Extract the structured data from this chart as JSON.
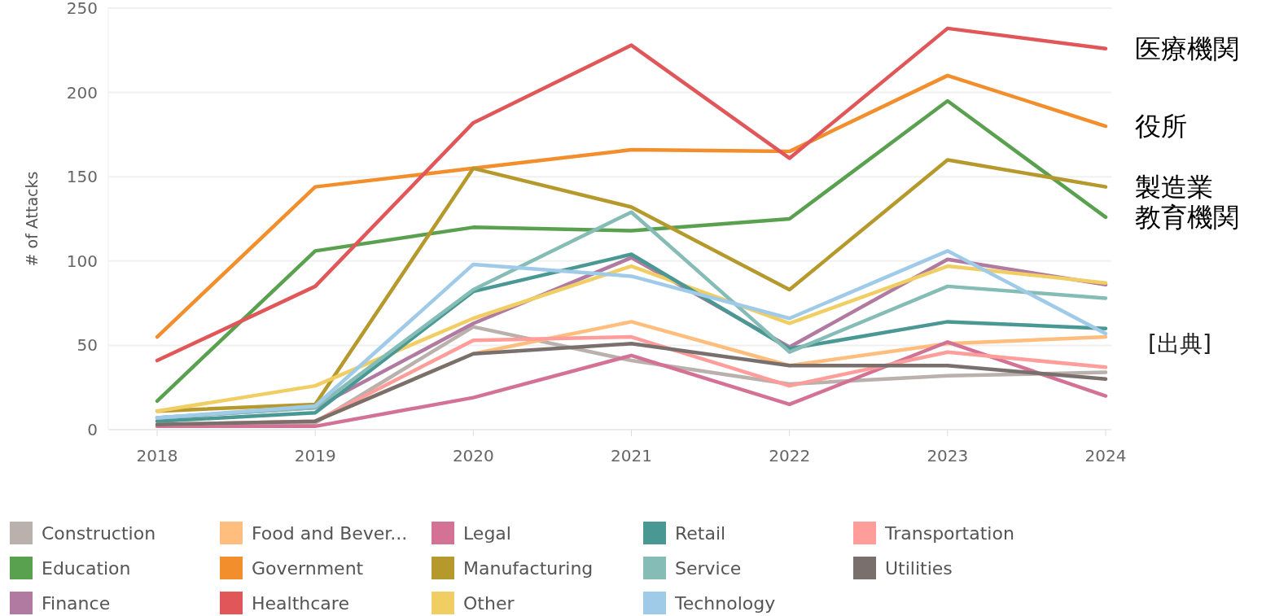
{
  "chart_data": {
    "type": "line",
    "ylabel": "# of Attacks",
    "categories": [
      "2018",
      "2019",
      "2020",
      "2021",
      "2022",
      "2023",
      "2024"
    ],
    "series": [
      {
        "name": "Construction",
        "color": "#bab0ac",
        "values": [
          2,
          4,
          61,
          41,
          27,
          32,
          34
        ]
      },
      {
        "name": "Education",
        "color": "#59a14f",
        "values": [
          17,
          106,
          120,
          118,
          125,
          195,
          126
        ]
      },
      {
        "name": "Finance",
        "color": "#b07aa1",
        "values": [
          7,
          13,
          63,
          102,
          49,
          101,
          86
        ]
      },
      {
        "name": "Food and Bever...",
        "color": "#ffbe7d",
        "values": [
          3,
          5,
          45,
          64,
          38,
          51,
          55
        ]
      },
      {
        "name": "Government",
        "color": "#f28e2b",
        "values": [
          55,
          144,
          155,
          166,
          165,
          210,
          180
        ]
      },
      {
        "name": "Healthcare",
        "color": "#e15759",
        "values": [
          41,
          85,
          182,
          228,
          161,
          238,
          226
        ]
      },
      {
        "name": "Legal",
        "color": "#d37295",
        "values": [
          2,
          2,
          19,
          44,
          15,
          52,
          20
        ]
      },
      {
        "name": "Manufacturing",
        "color": "#b6992d",
        "values": [
          11,
          15,
          155,
          132,
          83,
          160,
          144
        ]
      },
      {
        "name": "Other",
        "color": "#f1ce63",
        "values": [
          11,
          26,
          66,
          97,
          63,
          97,
          87
        ]
      },
      {
        "name": "Retail",
        "color": "#499894",
        "values": [
          5,
          10,
          82,
          104,
          48,
          64,
          60
        ]
      },
      {
        "name": "Service",
        "color": "#86bcb6",
        "values": [
          7,
          13,
          83,
          129,
          46,
          85,
          78
        ]
      },
      {
        "name": "Technology",
        "color": "#a0cbe8",
        "values": [
          7,
          14,
          98,
          91,
          66,
          106,
          57
        ]
      },
      {
        "name": "Transportation",
        "color": "#ff9d9a",
        "values": [
          3,
          5,
          53,
          55,
          26,
          46,
          37
        ]
      },
      {
        "name": "Utilities",
        "color": "#79706e",
        "values": [
          3,
          5,
          45,
          51,
          38,
          38,
          30
        ]
      }
    ],
    "ylim": [
      0,
      250
    ],
    "yticks": [
      0,
      50,
      100,
      150,
      200,
      250
    ],
    "grid": "y",
    "legend": "bottom",
    "marker": "none",
    "line_style": "solid",
    "annotations": [
      {
        "text": "医療機関",
        "x": "2024",
        "y": 226
      },
      {
        "text": "役所",
        "x": "2024",
        "y": 180
      },
      {
        "text": "製造業",
        "x": "2024",
        "y": 144
      },
      {
        "text": "教育機関",
        "x": "2024",
        "y": 126
      },
      "[出典]"
    ]
  }
}
